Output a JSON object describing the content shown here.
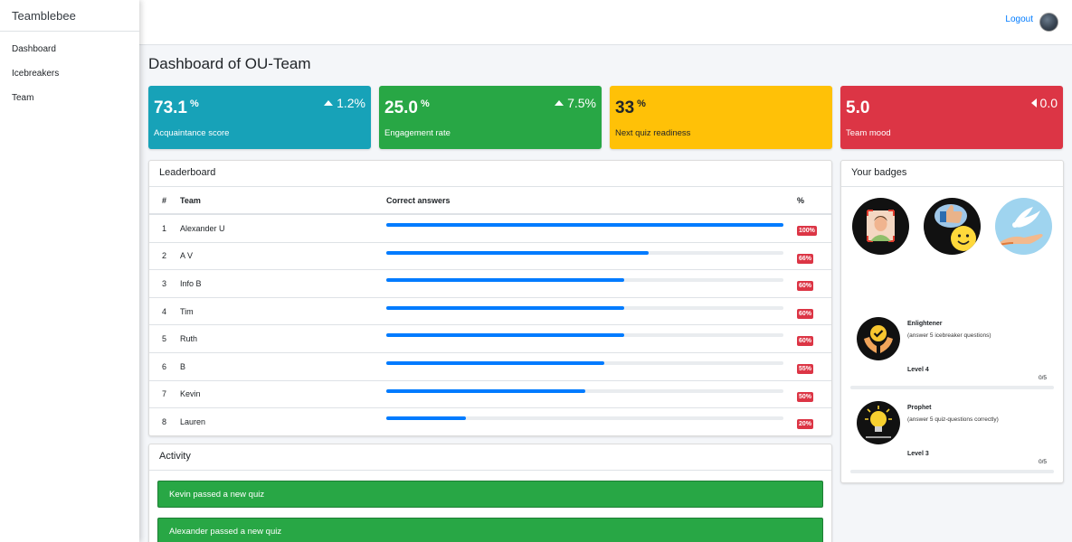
{
  "app": {
    "brand": "Teamblebee"
  },
  "sidebar": {
    "items": [
      {
        "label": "Dashboard"
      },
      {
        "label": "Icebreakers"
      },
      {
        "label": "Team"
      }
    ]
  },
  "topbar": {
    "logout_label": "Logout"
  },
  "page": {
    "title": "Dashboard of OU-Team"
  },
  "stats": [
    {
      "value": "73.1",
      "unit": "%",
      "label": "Acquaintance score",
      "delta": "1.2%",
      "delta_dir": "up",
      "color": "#17a2b8"
    },
    {
      "value": "25.0",
      "unit": "%",
      "label": "Engagement rate",
      "delta": "7.5%",
      "delta_dir": "up",
      "color": "#28a745"
    },
    {
      "value": "33",
      "unit": "%",
      "label": "Next quiz readiness",
      "delta": "",
      "delta_dir": "",
      "color": "#ffc107"
    },
    {
      "value": "5.0",
      "unit": "",
      "label": "Team mood",
      "delta": "0.0",
      "delta_dir": "left",
      "color": "#dc3545"
    }
  ],
  "leaderboard": {
    "title": "Leaderboard",
    "columns": {
      "num": "#",
      "team": "Team",
      "answers": "Correct answers",
      "pct": "%"
    },
    "rows": [
      {
        "num": "1",
        "team": "Alexander U",
        "progress": 100,
        "pct": "100%"
      },
      {
        "num": "2",
        "team": "A V",
        "progress": 66,
        "pct": "66%"
      },
      {
        "num": "3",
        "team": "Info B",
        "progress": 60,
        "pct": "60%"
      },
      {
        "num": "4",
        "team": "Tim",
        "progress": 60,
        "pct": "60%"
      },
      {
        "num": "5",
        "team": "Ruth",
        "progress": 60,
        "pct": "60%"
      },
      {
        "num": "6",
        "team": "B",
        "progress": 55,
        "pct": "55%"
      },
      {
        "num": "7",
        "team": "Kevin",
        "progress": 50,
        "pct": "50%"
      },
      {
        "num": "8",
        "team": "Lauren",
        "progress": 20,
        "pct": "20%"
      }
    ]
  },
  "activity": {
    "title": "Activity",
    "items": [
      {
        "text": "Kevin passed a new quiz"
      },
      {
        "text": "Alexander passed a new quiz"
      }
    ]
  },
  "badges": {
    "title": "Your badges",
    "earned": [
      {
        "icon": "face-recognition-badge-icon"
      },
      {
        "icon": "thumbs-up-smiley-badge-icon"
      },
      {
        "icon": "dove-hand-badge-icon"
      }
    ],
    "achievements": [
      {
        "icon": "checkmark-hands-icon",
        "title": "Enlightener",
        "desc": "(answer 5 icebreaker questions)",
        "level": "Level 4",
        "progress": "0/5",
        "progress_value": 0
      },
      {
        "icon": "lightbulb-icon",
        "title": "Prophet",
        "desc": "(answer 5 quiz-questions correctly)",
        "level": "Level 3",
        "progress": "0/5",
        "progress_value": 0
      }
    ]
  }
}
